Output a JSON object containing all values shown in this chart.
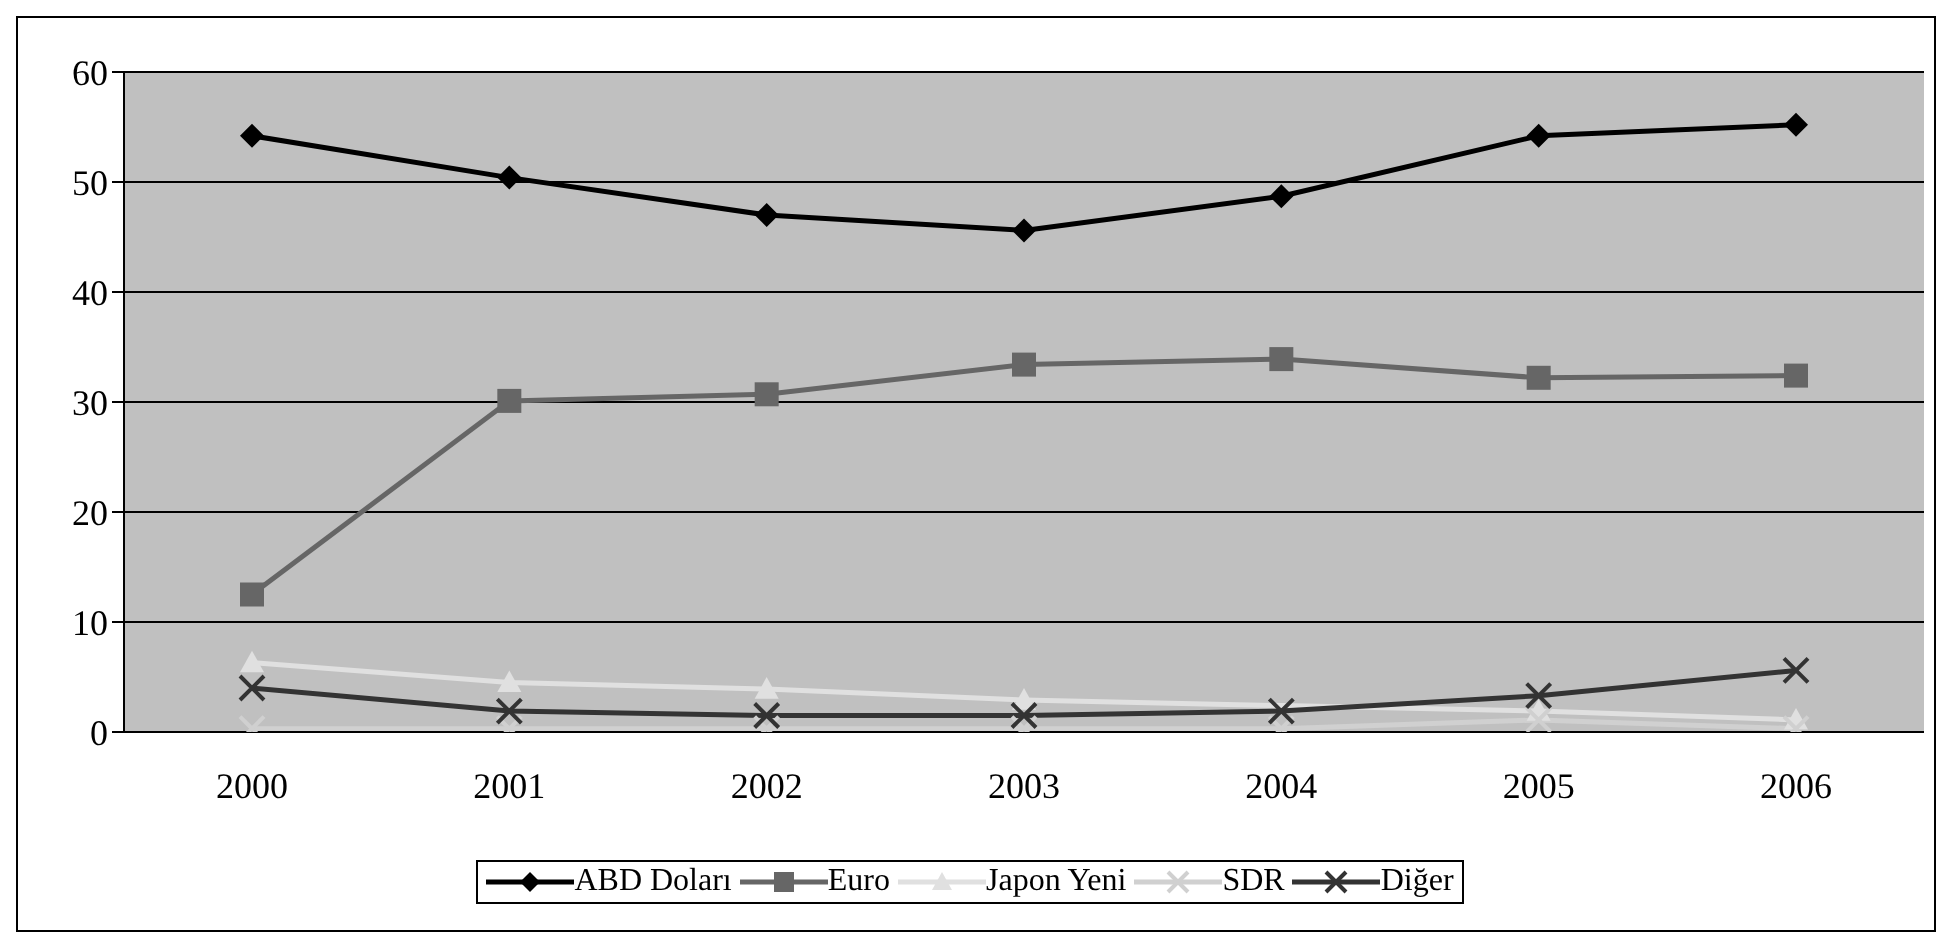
{
  "chart_data": {
    "type": "line",
    "categories": [
      "2000",
      "2001",
      "2002",
      "2003",
      "2004",
      "2005",
      "2006"
    ],
    "series": [
      {
        "name": "ABD Doları",
        "color": "#000000",
        "marker": "diamond",
        "values": [
          54.2,
          50.4,
          47.0,
          45.6,
          48.7,
          54.2,
          55.2
        ]
      },
      {
        "name": "Euro",
        "color": "#666666",
        "marker": "square",
        "values": [
          12.5,
          30.1,
          30.7,
          33.4,
          33.9,
          32.2,
          32.4
        ]
      },
      {
        "name": "Japon Yeni",
        "color": "#e0e0e0",
        "marker": "triangle",
        "values": [
          6.3,
          4.5,
          3.9,
          2.9,
          null,
          1.9,
          1.1
        ]
      },
      {
        "name": "SDR",
        "color": "#d0d0d0",
        "marker": "cross",
        "values": [
          0.3,
          0.3,
          0.3,
          0.3,
          0.3,
          1.1,
          0.3
        ]
      },
      {
        "name": "Diğer",
        "color": "#333333",
        "marker": "cross",
        "values": [
          4.0,
          1.9,
          1.5,
          1.5,
          1.9,
          3.3,
          5.6
        ]
      }
    ],
    "ylim": [
      0,
      60
    ],
    "yticks": [
      0,
      10,
      20,
      30,
      40,
      50,
      60
    ],
    "grid": "y",
    "legend": "bottom"
  }
}
